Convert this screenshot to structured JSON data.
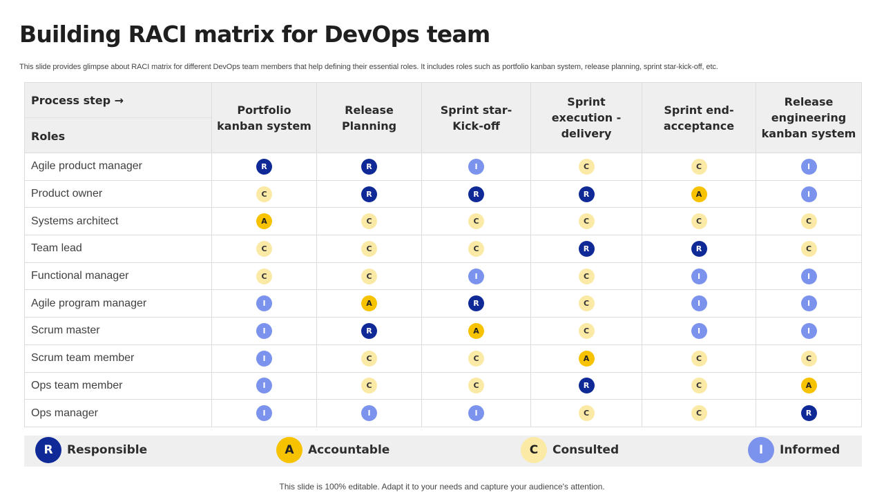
{
  "title": "Building RACI matrix for DevOps team",
  "subtitle": "This slide provides glimpse about RACI matrix for different DevOps team members that help defining their essential roles. It includes roles such as portfolio kanban system, release planning, sprint star-kick-off, etc.",
  "table": {
    "corner_top": "Process step →",
    "corner_bottom": "Roles",
    "columns": [
      "Portfolio kanban system",
      "Release Planning",
      "Sprint star-Kick-off",
      "Sprint execution -delivery",
      "Sprint end- acceptance",
      "Release engineering kanban system"
    ],
    "rows": [
      {
        "role": "Agile product manager",
        "values": [
          "R",
          "R",
          "I",
          "C",
          "C",
          "I"
        ]
      },
      {
        "role": "Product owner",
        "values": [
          "C",
          "R",
          "R",
          "R",
          "A",
          "I"
        ]
      },
      {
        "role": "Systems architect",
        "values": [
          "A",
          "C",
          "C",
          "C",
          "C",
          "C"
        ]
      },
      {
        "role": "Team lead",
        "values": [
          "C",
          "C",
          "C",
          "R",
          "R",
          "C"
        ]
      },
      {
        "role": "Functional manager",
        "values": [
          "C",
          "C",
          "I",
          "C",
          "I",
          "I"
        ]
      },
      {
        "role": "Agile program manager",
        "values": [
          "I",
          "A",
          "R",
          "C",
          "I",
          "I"
        ]
      },
      {
        "role": "Scrum master",
        "values": [
          "I",
          "R",
          "A",
          "C",
          "I",
          "I"
        ]
      },
      {
        "role": "Scrum team member",
        "values": [
          "I",
          "C",
          "C",
          "A",
          "C",
          "C"
        ]
      },
      {
        "role": "Ops team member",
        "values": [
          "I",
          "C",
          "C",
          "R",
          "C",
          "A"
        ]
      },
      {
        "role": "Ops manager",
        "values": [
          "I",
          "I",
          "I",
          "C",
          "C",
          "R"
        ]
      }
    ]
  },
  "legend": [
    {
      "letter": "R",
      "label": "Responsible"
    },
    {
      "letter": "A",
      "label": "Accountable"
    },
    {
      "letter": "C",
      "label": "Consulted"
    },
    {
      "letter": "I",
      "label": "Informed"
    }
  ],
  "colors": {
    "R": "#0f2a96",
    "A": "#f7c200",
    "C": "#fbe9a6",
    "I": "#7b93ec"
  },
  "footer": "This slide is 100% editable. Adapt it to your needs and capture your audience's attention."
}
